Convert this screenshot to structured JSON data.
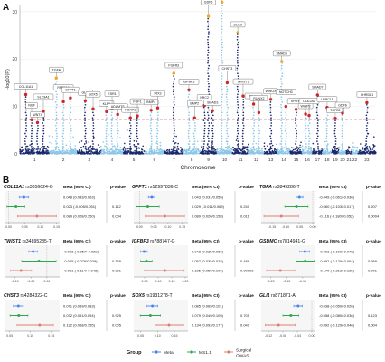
{
  "panels": {
    "a_label": "A",
    "b_label": "B"
  },
  "colors": {
    "dark": "#1b2a6e",
    "light": "#8cc6e6",
    "threshold": "#d02525",
    "top_hit": "#f5a623",
    "meta": "#4a86e8",
    "ms11": "#2ea84e",
    "surgical": "#e07d72"
  },
  "chart_data": [
    {
      "type": "scatter",
      "kind": "manhattan",
      "xlabel": "Chromosome",
      "ylabel": "-log10(P)",
      "ylim": [
        0,
        30
      ],
      "yticks": [
        0,
        10,
        20,
        30
      ],
      "chromosomes": [
        "1",
        "2",
        "3",
        "4",
        "5",
        "6",
        "7",
        "8",
        "9",
        "10",
        "11",
        "12",
        "13",
        "14",
        "15",
        "16",
        "17",
        "18",
        "19",
        "20",
        "21",
        "22",
        "23"
      ],
      "threshold": 7.3,
      "labeled_hits": [
        {
          "gene": "COL11A1",
          "chr": "1",
          "y": 12.5
        },
        {
          "gene": "NGF",
          "chr": "1",
          "y": 7.2
        },
        {
          "gene": "WNT4",
          "chr": "1",
          "y": 6.6
        },
        {
          "gene": "SLC9A1",
          "chr": "1",
          "y": 9.0
        },
        {
          "gene": "TGFA",
          "chr": "2",
          "y": 16.0
        },
        {
          "gene": "PAPPA2",
          "chr": "2",
          "y": 11.0
        },
        {
          "gene": "GFPT1",
          "chr": "2",
          "y": 11.8
        },
        {
          "gene": "GLI1",
          "chr": "3",
          "y": 11.2
        },
        {
          "gene": "SOX5",
          "chr": "3",
          "y": 9.5
        },
        {
          "gene": "KLF5",
          "chr": "4",
          "y": 8.9
        },
        {
          "gene": "ESR1",
          "chr": "4",
          "y": 9.6
        },
        {
          "gene": "ADAMTS",
          "chr": "4",
          "y": 8.3
        },
        {
          "gene": "FOXP1",
          "chr": "5",
          "y": 7.6
        },
        {
          "gene": "FGF1",
          "chr": "5",
          "y": 8.0
        },
        {
          "gene": "BMP4",
          "chr": "6",
          "y": 9.2
        },
        {
          "gene": "IRX3",
          "chr": "6",
          "y": 9.7
        },
        {
          "gene": "FGFR3",
          "chr": "7",
          "y": 17.0
        },
        {
          "gene": "IGFBP3",
          "chr": "8",
          "y": 13.5
        },
        {
          "gene": "BMP2",
          "chr": "8",
          "y": 7.6
        },
        {
          "gene": "NRC2",
          "chr": "9",
          "y": 10.2
        },
        {
          "gene": "GDF5",
          "chr": "9",
          "y": 29.0
        },
        {
          "gene": "SMAD3",
          "chr": "9",
          "y": 9.1
        },
        {
          "gene": "GSDMC",
          "chr": "10",
          "y": 32.0
        },
        {
          "gene": "CHST3",
          "chr": "10",
          "y": 15.0
        },
        {
          "gene": "SOX9",
          "chr": "11",
          "y": 25.6
        },
        {
          "gene": "TWIST1",
          "chr": "11",
          "y": 12.2
        },
        {
          "gene": "PTHLH",
          "chr": "12",
          "y": 10.5
        },
        {
          "gene": "RUNX2",
          "chr": "12",
          "y": 8.7
        },
        {
          "gene": "WWOX",
          "chr": "13",
          "y": 11.5
        },
        {
          "gene": "SMAD6",
          "chr": "14",
          "y": 19.5
        },
        {
          "gene": "NOTCH3",
          "chr": "14",
          "y": 10.0
        },
        {
          "gene": "SPRY4",
          "chr": "15",
          "y": 9.4
        },
        {
          "gene": "WWP2",
          "chr": "16",
          "y": 8.4
        },
        {
          "gene": "COL2A1",
          "chr": "16",
          "y": 8.1
        },
        {
          "gene": "SMAD7",
          "chr": "17",
          "y": 12.4
        },
        {
          "gene": "LRRC15",
          "chr": "18",
          "y": 9.8
        },
        {
          "gene": "TGFB1",
          "chr": "19",
          "y": 7.5
        },
        {
          "gene": "GDF6",
          "chr": "20",
          "y": 8.6
        },
        {
          "gene": "CHRDL1",
          "chr": "23",
          "y": 10.8
        }
      ]
    },
    {
      "type": "forest",
      "title": "",
      "legend_title": "Group",
      "groups": [
        "Meta",
        "MS1.1",
        "Surgical GWAS"
      ],
      "column_headers": {
        "beta": "Beta (95% CI)",
        "p": "p-value"
      },
      "panels": [
        {
          "gene": "COL11A1",
          "snp": "rs3056624-G",
          "rows": [
            {
              "group": "Meta",
              "beta": 0.048,
              "lo": 0.033,
              "hi": 0.063,
              "label": "0.048 (0.033/0.063)",
              "p": ""
            },
            {
              "group": "MS1.1",
              "beta": 0.023,
              "lo": -0.005,
              "hi": 0.051,
              "label": "0.023 (-0.005/0.051)",
              "p": "0.112"
            },
            {
              "group": "Surgical GWAS",
              "beta": 0.089,
              "lo": 0.028,
              "hi": 0.15,
              "label": "0.089 (0.028/0.150)",
              "p": "0.004"
            }
          ],
          "xticks": [
            "0.00",
            "0.05",
            "0.10",
            "0.15"
          ],
          "xlim": [
            -0.01,
            0.16
          ]
        },
        {
          "gene": "GFPT1",
          "snp": "rs12997836-C",
          "rows": [
            {
              "group": "Meta",
              "beta": 0.043,
              "lo": 0.031,
              "hi": 0.055,
              "label": "0.043 (0.031/0.055)",
              "p": ""
            },
            {
              "group": "MS1.1",
              "beta": 0.029,
              "lo": -0.011,
              "hi": 0.069,
              "label": "0.029 (-0.011/0.069)",
              "p": "0.241"
            },
            {
              "group": "Surgical GWAS",
              "beta": 0.089,
              "lo": 0.02,
              "hi": 0.158,
              "label": "0.089 (0.020/0.158)",
              "p": "0.011"
            }
          ],
          "xticks": [
            "0.00",
            "0.05",
            "0.10",
            "0.15"
          ],
          "xlim": [
            -0.02,
            0.17
          ]
        },
        {
          "gene": "TGFA",
          "snp": "rs3849286-T",
          "rows": [
            {
              "group": "Meta",
              "beta": -0.049,
              "lo": -0.061,
              "hi": -0.036,
              "label": "-0.049 (-0.061/-0.036)",
              "p": ""
            },
            {
              "group": "MS1.1",
              "beta": -0.06,
              "lo": -0.103,
              "hi": -0.017,
              "label": "-0.060 (-0.103/-0.017)",
              "p": "0.207"
            },
            {
              "group": "Surgical GWAS",
              "beta": -0.116,
              "lo": -0.18,
              "hi": -0.052,
              "label": "-0.116 (-0.180/-0.052)",
              "p": "0.0004"
            }
          ],
          "xticks": [
            "-0.15",
            "-0.10",
            "-0.05",
            "0.00"
          ],
          "xlim": [
            -0.19,
            0.01
          ]
        },
        {
          "gene": "TWIST1",
          "snp": "rs34895285-T",
          "rows": [
            {
              "group": "Meta",
              "beta": -0.043,
              "lo": -0.057,
              "hi": -0.029,
              "label": "-0.043 (-0.057/-0.029)",
              "p": ""
            },
            {
              "group": "MS1.1",
              "beta": -0.025,
              "lo": -0.079,
              "hi": 0.029,
              "label": "-0.025 (-0.079/0.029)",
              "p": "0.365"
            },
            {
              "group": "Surgical GWAS",
              "beta": -0.081,
              "lo": -0.114,
              "hi": -0.048,
              "label": "-0.081 (-0.114/-0.048)",
              "p": "0.001"
            }
          ],
          "xticks": [
            "-0.10",
            "-0.05",
            "0.00"
          ],
          "xlim": [
            -0.13,
            0.04
          ]
        },
        {
          "gene": "IGFBP3",
          "snp": "rs788747-G",
          "rows": [
            {
              "group": "Meta",
              "beta": 0.048,
              "lo": 0.035,
              "hi": 0.06,
              "label": "0.048 (0.035/0.060)",
              "p": ""
            },
            {
              "group": "MS1.1",
              "beta": 0.057,
              "lo": 0.035,
              "hi": 0.078,
              "label": "0.057 (0.035/0.078)",
              "p": "0.489"
            },
            {
              "group": "Surgical GWAS",
              "beta": 0.125,
              "lo": 0.05,
              "hi": 0.196,
              "label": "0.125 (0.050/0.196)",
              "p": "0.00003"
            }
          ],
          "xticks": [
            "0.05",
            "0.10",
            "0.15",
            "0.20"
          ],
          "xlim": [
            0.01,
            0.21
          ]
        },
        {
          "gene": "GSDMC",
          "snp": "rs7814941-G",
          "rows": [
            {
              "group": "Meta",
              "beta": -0.093,
              "lo": -0.109,
              "hi": -0.078,
              "label": "-0.093 (-0.109/-0.078)",
              "p": ""
            },
            {
              "group": "MS1.1",
              "beta": -0.092,
              "lo": -0.12,
              "hi": -0.064,
              "label": "-0.092 (-0.120/-0.064)",
              "p": "0.959"
            },
            {
              "group": "Surgical GWAS",
              "beta": -0.17,
              "lo": -0.213,
              "hi": -0.125,
              "label": "-0.170 (-0.213/-0.125)",
              "p": "0.001"
            }
          ],
          "xticks": [
            "-0.20",
            "-0.15",
            "-0.10"
          ],
          "xlim": [
            -0.23,
            -0.06
          ]
        },
        {
          "gene": "CHST3",
          "snp": "rs4284322-C",
          "rows": [
            {
              "group": "Meta",
              "beta": 0.071,
              "lo": 0.059,
              "hi": 0.083,
              "label": "0.071 (0.059/0.083)",
              "p": ""
            },
            {
              "group": "MS1.1",
              "beta": 0.072,
              "lo": 0.051,
              "hi": 0.094,
              "label": "0.072 (0.051/0.094)",
              "p": "0.925"
            },
            {
              "group": "Surgical GWAS",
              "beta": 0.122,
              "lo": 0.068,
              "hi": 0.155,
              "label": "0.122 (0.068/0.155)",
              "p": "0.005"
            }
          ],
          "xticks": [
            "0.05",
            "0.10",
            "0.15"
          ],
          "xlim": [
            0.04,
            0.17
          ]
        },
        {
          "gene": "SOX5",
          "snp": "rs1931278-T",
          "rows": [
            {
              "group": "Meta",
              "beta": 0.085,
              "lo": 0.069,
              "hi": 0.101,
              "label": "0.085 (0.069/0.101)",
              "p": ""
            },
            {
              "group": "MS1.1",
              "beta": 0.079,
              "lo": 0.049,
              "hi": 0.109,
              "label": "0.079 (0.049/0.109)",
              "p": "0.705"
            },
            {
              "group": "Surgical GWAS",
              "beta": 0.134,
              "lo": 0.093,
              "hi": 0.177,
              "label": "0.134 (0.093/0.177)",
              "p": "0.041"
            }
          ],
          "xticks": [
            "0.05",
            "0.10",
            "0.15"
          ],
          "xlim": [
            0.03,
            0.19
          ]
        },
        {
          "gene": "GLI1",
          "snp": "rs871871-A",
          "rows": [
            {
              "group": "Meta",
              "beta": -0.038,
              "lo": -0.05,
              "hi": -0.026,
              "label": "-0.038 (-0.050/-0.026)",
              "p": ""
            },
            {
              "group": "MS1.1",
              "beta": -0.058,
              "lo": -0.08,
              "hi": -0.036,
              "label": "-0.058 (-0.080/-0.036)",
              "p": "0.123"
            },
            {
              "group": "Surgical GWAS",
              "beta": -0.092,
              "lo": -0.129,
              "hi": -0.046,
              "label": "-0.092 (-0.129/-0.046)",
              "p": "0.004"
            }
          ],
          "xticks": [
            "-0.12",
            "-0.08",
            "-0.04",
            "0.00"
          ],
          "xlim": [
            -0.14,
            0.01
          ]
        }
      ]
    }
  ]
}
